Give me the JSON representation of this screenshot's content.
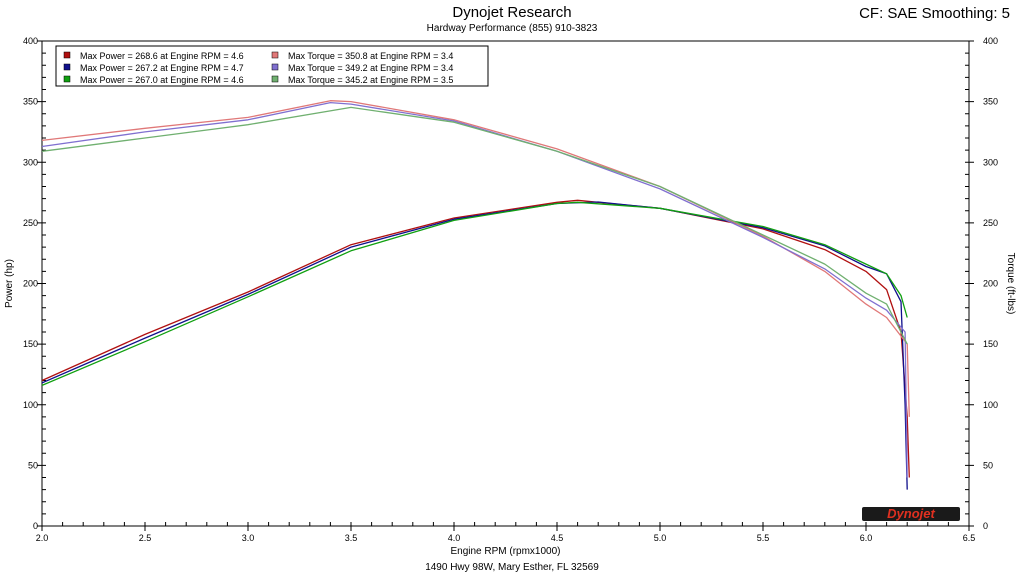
{
  "header": {
    "title": "Dynojet Research",
    "subtitle": "Hardway Performance (855) 910-3823",
    "cf_label": "CF: SAE Smoothing: 5"
  },
  "footer": {
    "address": "1490 Hwy 98W, Mary Esther, FL  32569"
  },
  "logo": {
    "text": "Dynojet"
  },
  "chart_data": {
    "type": "line",
    "xlabel": "Engine RPM (rpmx1000)",
    "ylabel": "Power (hp)",
    "y2label": "Torque (ft-lbs)",
    "xlim": [
      2.0,
      6.5
    ],
    "ylim": [
      0,
      400
    ],
    "y2lim": [
      0,
      400
    ],
    "x_ticks": [
      "2.0",
      "2.5",
      "3.0",
      "3.5",
      "4.0",
      "4.5",
      "5.0",
      "5.5",
      "6.0",
      "6.5"
    ],
    "y_ticks": [
      "0",
      "50",
      "100",
      "150",
      "200",
      "250",
      "300",
      "350",
      "400"
    ],
    "grid": true,
    "legend_position": "top-left",
    "legend": [
      {
        "label": "Max Power = 268.6 at Engine RPM = 4.6",
        "color": "#b01010"
      },
      {
        "label": "Max Power = 267.2 at Engine RPM = 4.7",
        "color": "#10108c"
      },
      {
        "label": "Max Power = 267.0 at Engine RPM = 4.6",
        "color": "#10a010"
      },
      {
        "label": "Max Torque = 350.8 at Engine RPM = 3.4",
        "color": "#e07878"
      },
      {
        "label": "Max Torque = 349.2 at Engine RPM = 3.4",
        "color": "#8070d0"
      },
      {
        "label": "Max Torque = 345.2 at Engine RPM = 3.5",
        "color": "#70b070"
      }
    ],
    "series": [
      {
        "kind": "power",
        "color": "#b01010",
        "x": [
          2.0,
          2.5,
          3.0,
          3.5,
          4.0,
          4.5,
          4.6,
          5.0,
          5.5,
          5.8,
          6.0,
          6.1,
          6.17,
          6.2,
          6.21
        ],
        "y": [
          120,
          158,
          193,
          232,
          254,
          267,
          268.6,
          262,
          245,
          228,
          210,
          195,
          160,
          90,
          40
        ]
      },
      {
        "kind": "power",
        "color": "#10108c",
        "x": [
          2.0,
          2.5,
          3.0,
          3.5,
          4.0,
          4.5,
          4.7,
          5.0,
          5.5,
          5.8,
          6.0,
          6.1,
          6.17,
          6.19,
          6.2
        ],
        "y": [
          118,
          155,
          191,
          230,
          253,
          266,
          267.2,
          262,
          246,
          231,
          214,
          208,
          185,
          100,
          30
        ]
      },
      {
        "kind": "power",
        "color": "#10a010",
        "x": [
          2.0,
          2.5,
          3.0,
          3.5,
          4.0,
          4.5,
          4.6,
          5.0,
          5.5,
          5.8,
          6.0,
          6.1,
          6.17,
          6.2
        ],
        "y": [
          116,
          152,
          189,
          227,
          252,
          266,
          267.0,
          262,
          247,
          232,
          216,
          208,
          190,
          172
        ]
      },
      {
        "kind": "torque",
        "color": "#e07878",
        "x": [
          2.0,
          2.5,
          3.0,
          3.4,
          3.5,
          4.0,
          4.5,
          5.0,
          5.5,
          5.8,
          6.0,
          6.1,
          6.2,
          6.21
        ],
        "y": [
          318,
          328,
          337,
          350.8,
          350,
          335,
          311,
          280,
          239,
          210,
          183,
          172,
          150,
          90
        ]
      },
      {
        "kind": "torque",
        "color": "#8070d0",
        "x": [
          2.0,
          2.5,
          3.0,
          3.4,
          3.5,
          4.0,
          4.5,
          5.0,
          5.5,
          5.8,
          6.0,
          6.1,
          6.19,
          6.2
        ],
        "y": [
          313,
          325,
          335,
          349.2,
          348,
          334,
          309,
          278,
          238,
          212,
          188,
          178,
          160,
          40
        ]
      },
      {
        "kind": "torque",
        "color": "#70b070",
        "x": [
          2.0,
          2.5,
          3.0,
          3.5,
          4.0,
          4.5,
          5.0,
          5.5,
          5.8,
          6.0,
          6.1,
          6.2
        ],
        "y": [
          309,
          320,
          331,
          345.2,
          333,
          309,
          280,
          240,
          216,
          192,
          183,
          150
        ]
      }
    ]
  }
}
